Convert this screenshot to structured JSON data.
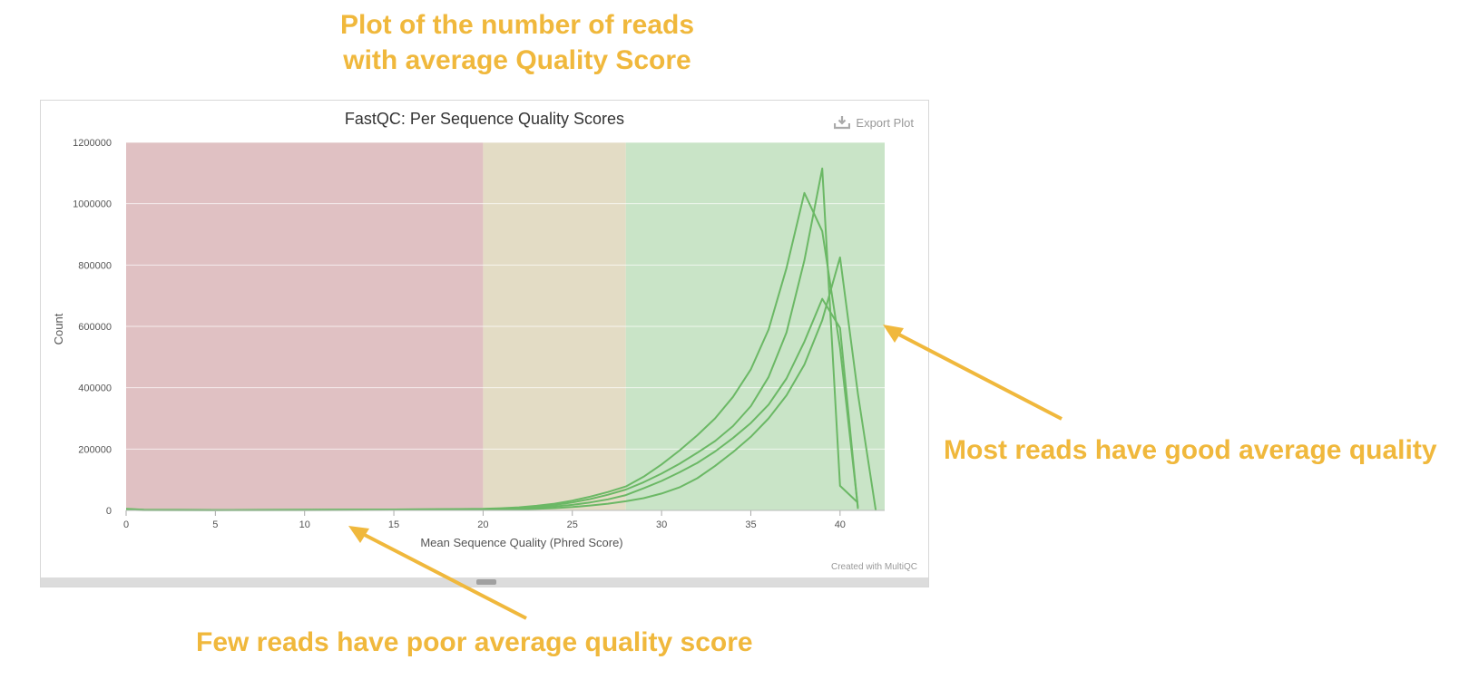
{
  "annotations": {
    "title_line1": "Plot of the number of reads",
    "title_line2": "with average Quality Score",
    "right_label": "Most reads have good average quality",
    "bottom_label": "Few reads have poor average quality score",
    "color": "#f0b83c"
  },
  "plot": {
    "export_label": "Export Plot",
    "export_icon": "download-icon",
    "credit": "Created with MultiQC"
  },
  "chart_data": {
    "type": "line",
    "title": "FastQC: Per Sequence Quality Scores",
    "xlabel": "Mean Sequence Quality (Phred Score)",
    "ylabel": "Count",
    "xlim": [
      0,
      42.5
    ],
    "ylim": [
      0,
      1200000
    ],
    "xticks": [
      0,
      5,
      10,
      15,
      20,
      25,
      30,
      35,
      40
    ],
    "yticks": [
      0,
      200000,
      400000,
      600000,
      800000,
      1000000,
      1200000
    ],
    "grid": true,
    "legend": "none",
    "bands": [
      {
        "from": 0,
        "to": 20,
        "color": "#e0c1c3"
      },
      {
        "from": 20,
        "to": 28,
        "color": "#e3dcc5"
      },
      {
        "from": 28,
        "to": 42.5,
        "color": "#c9e4c7"
      }
    ],
    "line_color": "#6bb865",
    "series": [
      {
        "x": [
          0,
          1,
          5,
          10,
          15,
          20,
          21,
          22,
          23,
          24,
          25,
          26,
          27,
          28,
          29,
          30,
          31,
          32,
          33,
          34,
          35,
          36,
          37,
          38,
          39,
          40,
          41
        ],
        "values": [
          5000,
          2000,
          1500,
          2000,
          3000,
          5000,
          7000,
          10000,
          15000,
          22000,
          32000,
          45000,
          60000,
          78000,
          110000,
          150000,
          195000,
          245000,
          300000,
          370000,
          460000,
          590000,
          790000,
          1035000,
          910000,
          530000,
          10000
        ]
      },
      {
        "x": [
          0,
          1,
          5,
          10,
          15,
          20,
          21,
          22,
          23,
          24,
          25,
          26,
          27,
          28,
          29,
          30,
          31,
          32,
          33,
          34,
          35,
          36,
          37,
          38,
          39,
          40,
          41
        ],
        "values": [
          4000,
          2000,
          1500,
          2000,
          3000,
          4000,
          6000,
          8000,
          12000,
          18000,
          26000,
          37000,
          51000,
          68000,
          92000,
          120000,
          152000,
          188000,
          226000,
          275000,
          340000,
          435000,
          580000,
          815000,
          1115000,
          80000,
          25000
        ]
      },
      {
        "x": [
          0,
          1,
          5,
          10,
          15,
          20,
          21,
          22,
          23,
          24,
          25,
          26,
          27,
          28,
          29,
          30,
          31,
          32,
          33,
          34,
          35,
          36,
          37,
          38,
          39,
          40,
          41
        ],
        "values": [
          3000,
          1500,
          1000,
          1500,
          2000,
          3000,
          4000,
          6000,
          9000,
          13000,
          18000,
          26000,
          36000,
          50000,
          72000,
          96000,
          124000,
          155000,
          192000,
          236000,
          285000,
          345000,
          430000,
          550000,
          690000,
          595000,
          5000
        ]
      },
      {
        "x": [
          0,
          1,
          5,
          10,
          15,
          20,
          21,
          22,
          23,
          24,
          25,
          26,
          27,
          28,
          29,
          30,
          31,
          32,
          33,
          34,
          35,
          36,
          37,
          38,
          39,
          40,
          41,
          42
        ],
        "values": [
          2000,
          1000,
          800,
          1000,
          1500,
          2000,
          2500,
          3500,
          5000,
          7500,
          11000,
          16000,
          22000,
          30000,
          40000,
          55000,
          75000,
          105000,
          145000,
          190000,
          240000,
          300000,
          375000,
          475000,
          620000,
          825000,
          380000,
          0
        ]
      }
    ]
  }
}
